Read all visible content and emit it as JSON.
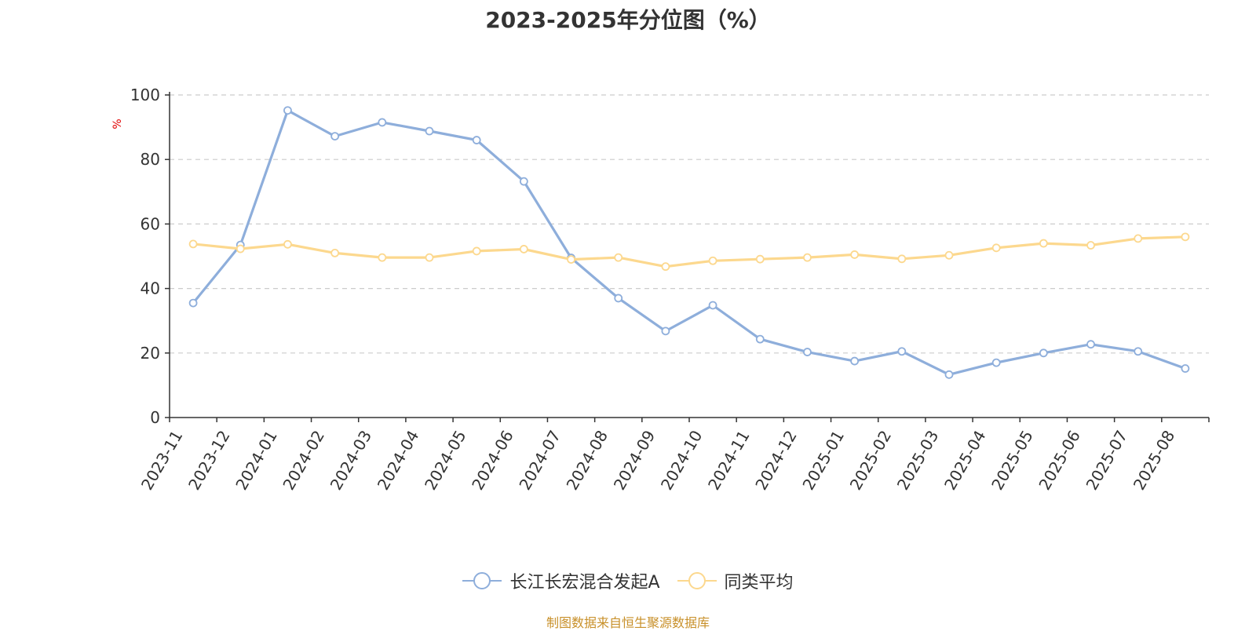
{
  "chart_data": {
    "type": "line",
    "title": "2023-2025年分位图（%）",
    "ylabel": "%",
    "xlabel": "",
    "ylim": [
      0,
      100
    ],
    "yticks": [
      0,
      20,
      40,
      60,
      80,
      100
    ],
    "grid": true,
    "legend_position": "bottom",
    "categories": [
      "2023-11",
      "2023-12",
      "2024-01",
      "2024-02",
      "2024-03",
      "2024-04",
      "2024-05",
      "2024-06",
      "2024-07",
      "2024-08",
      "2024-09",
      "2024-10",
      "2024-11",
      "2024-12",
      "2025-01",
      "2025-02",
      "2025-03",
      "2025-04",
      "2025-05",
      "2025-06",
      "2025-07",
      "2025-08"
    ],
    "series": [
      {
        "name": "长江长宏混合发起A",
        "color": "#8eaedb",
        "values": [
          35.5,
          53.5,
          95.2,
          87.2,
          91.5,
          88.8,
          86.0,
          73.2,
          49.5,
          37.0,
          26.8,
          34.8,
          24.3,
          20.3,
          17.5,
          20.5,
          13.3,
          17.0,
          20.0,
          22.7,
          20.5,
          15.2
        ]
      },
      {
        "name": "同类平均",
        "color": "#fcd88e",
        "values": [
          53.8,
          52.3,
          53.7,
          51.0,
          49.6,
          49.6,
          51.6,
          52.2,
          49.0,
          49.6,
          46.8,
          48.6,
          49.1,
          49.6,
          50.5,
          49.2,
          50.3,
          52.6,
          54.0,
          53.4,
          55.5,
          56.0
        ]
      }
    ]
  },
  "footer": "制图数据来自恒生聚源数据库"
}
